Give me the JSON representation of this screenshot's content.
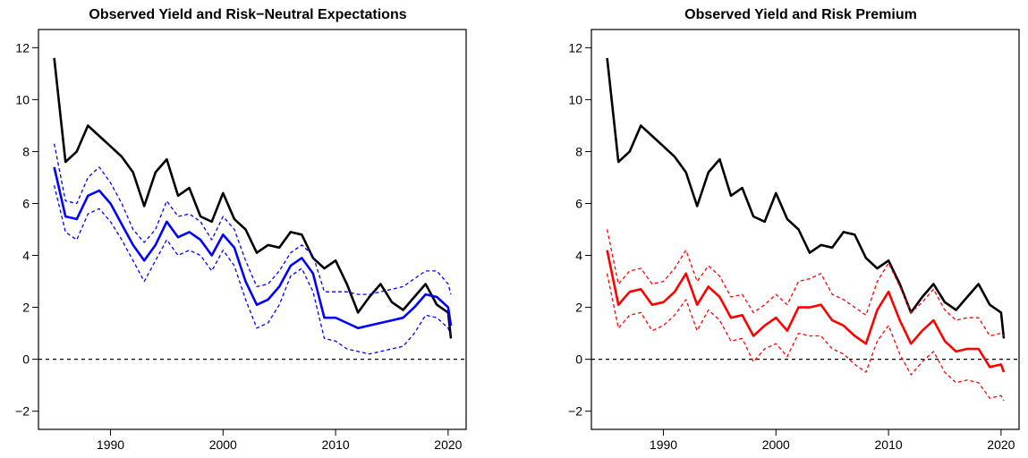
{
  "chart_data": [
    {
      "type": "line",
      "title": "Observed Yield and Risk−Neutral Expectations",
      "x": [
        1985,
        1986,
        1987,
        1988,
        1989,
        1990,
        1991,
        1992,
        1993,
        1994,
        1995,
        1996,
        1997,
        1998,
        1999,
        2000,
        2001,
        2002,
        2003,
        2004,
        2005,
        2006,
        2007,
        2008,
        2009,
        2010,
        2011,
        2012,
        2013,
        2014,
        2015,
        2016,
        2017,
        2018,
        2019,
        2020,
        2020.25
      ],
      "series": [
        {
          "name": "Observed Yield",
          "color": "#000000",
          "dashed": false,
          "values": [
            11.6,
            7.6,
            8.0,
            9.0,
            8.6,
            8.2,
            7.8,
            7.2,
            5.9,
            7.2,
            7.7,
            6.3,
            6.6,
            5.5,
            5.3,
            6.4,
            5.4,
            5.0,
            4.1,
            4.4,
            4.3,
            4.9,
            4.8,
            3.9,
            3.5,
            3.8,
            2.9,
            1.8,
            2.4,
            2.9,
            2.2,
            1.9,
            2.4,
            2.9,
            2.1,
            1.8,
            0.8
          ]
        },
        {
          "name": "Risk-Neutral Expectations",
          "color": "#0000ff",
          "dashed": false,
          "values": [
            7.4,
            5.5,
            5.4,
            6.3,
            6.5,
            6.0,
            5.2,
            4.4,
            3.8,
            4.4,
            5.3,
            4.7,
            4.9,
            4.6,
            4.0,
            4.8,
            4.3,
            3.0,
            2.1,
            2.3,
            2.8,
            3.6,
            3.9,
            3.3,
            1.6,
            1.6,
            1.4,
            1.2,
            1.3,
            1.4,
            1.5,
            1.6,
            2.0,
            2.5,
            2.4,
            2.0,
            1.3
          ]
        },
        {
          "name": "Upper Band",
          "color": "#0000ff",
          "dashed": true,
          "values": [
            8.3,
            6.1,
            6.0,
            7.0,
            7.4,
            6.8,
            6.0,
            5.0,
            4.5,
            5.0,
            6.1,
            5.5,
            5.6,
            5.3,
            4.6,
            5.5,
            5.0,
            3.8,
            2.8,
            2.9,
            3.4,
            4.1,
            4.4,
            4.0,
            2.6,
            2.6,
            2.6,
            2.5,
            2.5,
            2.6,
            2.7,
            2.8,
            3.1,
            3.4,
            3.4,
            2.9,
            2.5
          ]
        },
        {
          "name": "Lower Band",
          "color": "#0000ff",
          "dashed": true,
          "values": [
            6.7,
            4.9,
            4.6,
            5.6,
            5.8,
            5.3,
            4.6,
            3.8,
            3.0,
            3.8,
            4.6,
            4.0,
            4.2,
            4.0,
            3.4,
            4.2,
            3.6,
            2.3,
            1.2,
            1.4,
            2.1,
            3.2,
            3.5,
            2.6,
            0.8,
            0.7,
            0.4,
            0.3,
            0.2,
            0.3,
            0.4,
            0.5,
            1.0,
            1.7,
            1.6,
            1.2,
            0.9
          ]
        }
      ],
      "xlim": [
        1983.6,
        2021.6
      ],
      "xticks": [
        1990,
        2000,
        2010,
        2020
      ],
      "ylim": [
        -2.7,
        12.7
      ],
      "yticks": [
        {
          "value": -2,
          "label": "−2"
        },
        0,
        2,
        4,
        6,
        8,
        10,
        12
      ],
      "hline": 0
    },
    {
      "type": "line",
      "title": "Observed Yield and Risk Premium",
      "x": [
        1985,
        1986,
        1987,
        1988,
        1989,
        1990,
        1991,
        1992,
        1993,
        1994,
        1995,
        1996,
        1997,
        1998,
        1999,
        2000,
        2001,
        2002,
        2003,
        2004,
        2005,
        2006,
        2007,
        2008,
        2009,
        2010,
        2011,
        2012,
        2013,
        2014,
        2015,
        2016,
        2017,
        2018,
        2019,
        2020,
        2020.25
      ],
      "series": [
        {
          "name": "Observed Yield",
          "color": "#000000",
          "dashed": false,
          "values": [
            11.6,
            7.6,
            8.0,
            9.0,
            8.6,
            8.2,
            7.8,
            7.2,
            5.9,
            7.2,
            7.7,
            6.3,
            6.6,
            5.5,
            5.3,
            6.4,
            5.4,
            5.0,
            4.1,
            4.4,
            4.3,
            4.9,
            4.8,
            3.9,
            3.5,
            3.8,
            2.9,
            1.8,
            2.4,
            2.9,
            2.2,
            1.9,
            2.4,
            2.9,
            2.1,
            1.8,
            0.8
          ]
        },
        {
          "name": "Risk Premium",
          "color": "#ff0000",
          "dashed": false,
          "values": [
            4.2,
            2.1,
            2.6,
            2.7,
            2.1,
            2.2,
            2.6,
            3.3,
            2.1,
            2.8,
            2.4,
            1.6,
            1.7,
            0.9,
            1.3,
            1.6,
            1.1,
            2.0,
            2.0,
            2.1,
            1.5,
            1.3,
            0.9,
            0.6,
            1.9,
            2.6,
            1.5,
            0.6,
            1.1,
            1.5,
            0.7,
            0.3,
            0.4,
            0.4,
            -0.3,
            -0.2,
            -0.5
          ]
        },
        {
          "name": "Upper Band",
          "color": "#ff0000",
          "dashed": true,
          "values": [
            5.0,
            2.9,
            3.4,
            3.5,
            2.9,
            3.0,
            3.5,
            4.2,
            3.0,
            3.6,
            3.2,
            2.4,
            2.5,
            1.8,
            2.1,
            2.5,
            2.1,
            3.0,
            3.1,
            3.3,
            2.5,
            2.3,
            2.0,
            1.7,
            3.0,
            3.7,
            2.8,
            1.8,
            2.2,
            2.7,
            1.9,
            1.5,
            1.6,
            1.6,
            0.9,
            1.0,
            0.9
          ]
        },
        {
          "name": "Lower Band",
          "color": "#ff0000",
          "dashed": true,
          "values": [
            3.3,
            1.2,
            1.7,
            1.8,
            1.1,
            1.3,
            1.7,
            2.3,
            1.1,
            1.9,
            1.5,
            0.7,
            0.8,
            -0.1,
            0.4,
            0.6,
            0.1,
            1.0,
            0.9,
            0.9,
            0.4,
            0.2,
            -0.2,
            -0.5,
            0.7,
            1.3,
            0.2,
            -0.6,
            -0.1,
            0.3,
            -0.5,
            -0.9,
            -0.8,
            -0.9,
            -1.5,
            -1.4,
            -1.6
          ]
        }
      ],
      "xlim": [
        1983.6,
        2021.6
      ],
      "xticks": [
        1990,
        2000,
        2010,
        2020
      ],
      "ylim": [
        -2.7,
        12.7
      ],
      "yticks": [
        {
          "value": -2,
          "label": "−2"
        },
        0,
        2,
        4,
        6,
        8,
        10,
        12
      ],
      "hline": 0
    }
  ]
}
